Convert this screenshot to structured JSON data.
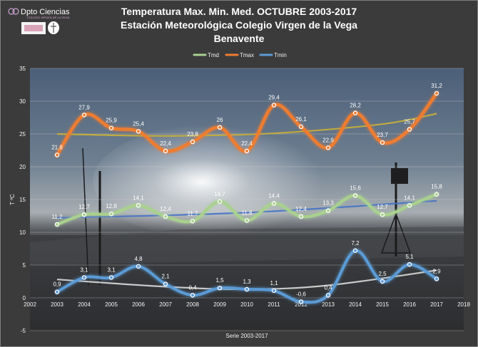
{
  "logo": {
    "name": "Dpto Ciencias",
    "subtitle": "COLEGIO VIRGEN DE LA VEGA"
  },
  "colors": {
    "tmd": "#a9d18e",
    "tmax": "#ed7d31",
    "tmin": "#5b9bd5",
    "trend_tmax": "#c9b038",
    "trend_tmd": "#4472c4",
    "trend_tmin": "#d9d9d9"
  },
  "chart_data": {
    "type": "line",
    "title_lines": [
      "Temperatura Max. Min. Med.  OCTUBRE  2003-2017",
      "Estación Meteorológica Colegio Virgen de la Vega",
      "Benavente"
    ],
    "xlabel": "Serie 2003-2017",
    "ylabel": "T ºC",
    "xlim": [
      2002,
      2018
    ],
    "ylim": [
      -5,
      35
    ],
    "x_ticks": [
      2002,
      2003,
      2004,
      2005,
      2006,
      2007,
      2008,
      2009,
      2010,
      2011,
      2012,
      2013,
      2014,
      2015,
      2016,
      2017,
      2018
    ],
    "y_ticks": [
      -5,
      0,
      5,
      10,
      15,
      20,
      25,
      30,
      35
    ],
    "x": [
      2003,
      2004,
      2005,
      2006,
      2007,
      2008,
      2009,
      2010,
      2011,
      2012,
      2013,
      2014,
      2015,
      2016,
      2017
    ],
    "legend_position": "top",
    "grid": true,
    "series": [
      {
        "name": "Tmd",
        "color": "#a9d18e",
        "values": [
          11.2,
          12.7,
          12.8,
          14.1,
          12.4,
          11.7,
          14.7,
          11.8,
          14.4,
          12.4,
          13.3,
          15.6,
          12.7,
          14.1,
          15.8
        ],
        "labels": [
          "11,2",
          "12,7",
          "12,8",
          "14,1",
          "12,4",
          "11,7",
          "14,7",
          "11,8",
          "14,4",
          "12,4",
          "13,3",
          "15,6",
          "12,7",
          "14,1",
          "15,8"
        ]
      },
      {
        "name": "Tmax",
        "color": "#ed7d31",
        "values": [
          21.8,
          27.9,
          25.9,
          25.4,
          22.4,
          23.8,
          26,
          22.4,
          29.4,
          26.1,
          22.9,
          28.2,
          23.7,
          25.7,
          31.2
        ],
        "labels": [
          "21,8",
          "27,9",
          "25,9",
          "25,4",
          "22,4",
          "23,8",
          "26",
          "22,4",
          "29,4",
          "26,1",
          "22,9",
          "28,2",
          "23,7",
          "25,7",
          "31,2"
        ]
      },
      {
        "name": "Tmin",
        "color": "#5b9bd5",
        "values": [
          0.9,
          3.1,
          3.1,
          4.8,
          2.1,
          0.4,
          1.5,
          1.3,
          1.1,
          -0.6,
          0.4,
          7.2,
          2.5,
          5.1,
          2.9
        ],
        "labels": [
          "0,9",
          "3,1",
          "3,1",
          "4,8",
          "2,1",
          "0,4",
          "1,5",
          "1,3",
          "1,1",
          "-0,6",
          "0,4",
          "7,2",
          "2,5",
          "5,1",
          "2,9"
        ]
      }
    ],
    "trendlines": [
      {
        "series": "Tmax",
        "color": "#c9b038",
        "points": [
          [
            2003,
            25.0
          ],
          [
            2007,
            24.7
          ],
          [
            2011,
            25.1
          ],
          [
            2015,
            26.5
          ],
          [
            2017,
            28.1
          ]
        ]
      },
      {
        "series": "Tmd",
        "color": "#4472c4",
        "points": [
          [
            2003,
            12.2
          ],
          [
            2010,
            13.0
          ],
          [
            2017,
            14.8
          ]
        ]
      },
      {
        "series": "Tmin",
        "color": "#d9d9d9",
        "points": [
          [
            2003,
            2.8
          ],
          [
            2007,
            1.7
          ],
          [
            2010,
            1.3
          ],
          [
            2013,
            1.9
          ],
          [
            2017,
            4.2
          ]
        ]
      }
    ]
  }
}
